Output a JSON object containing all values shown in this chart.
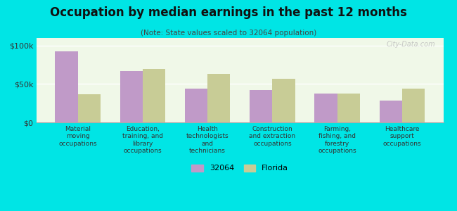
{
  "title": "Occupation by median earnings in the past 12 months",
  "subtitle": "(Note: State values scaled to 32064 population)",
  "categories": [
    "Material\nmoving\noccupations",
    "Education,\ntraining, and\nlibrary\noccupations",
    "Health\ntechnologists\nand\ntechnicians",
    "Construction\nand extraction\noccupations",
    "Farming,\nfishing, and\nforestry\noccupations",
    "Healthcare\nsupport\noccupations"
  ],
  "values_32064": [
    93000,
    67000,
    44000,
    42000,
    38000,
    28000
  ],
  "values_florida": [
    37000,
    70000,
    63000,
    57000,
    38000,
    44000
  ],
  "color_32064": "#c09ac8",
  "color_florida": "#c8cc96",
  "background_chart": "#f0f8e8",
  "background_outer": "#00e5e5",
  "yticks": [
    0,
    50000,
    100000
  ],
  "ytick_labels": [
    "$0",
    "$50k",
    "$100k"
  ],
  "ylim": [
    0,
    110000
  ],
  "legend_32064": "32064",
  "legend_florida": "Florida",
  "watermark": "City-Data.com"
}
